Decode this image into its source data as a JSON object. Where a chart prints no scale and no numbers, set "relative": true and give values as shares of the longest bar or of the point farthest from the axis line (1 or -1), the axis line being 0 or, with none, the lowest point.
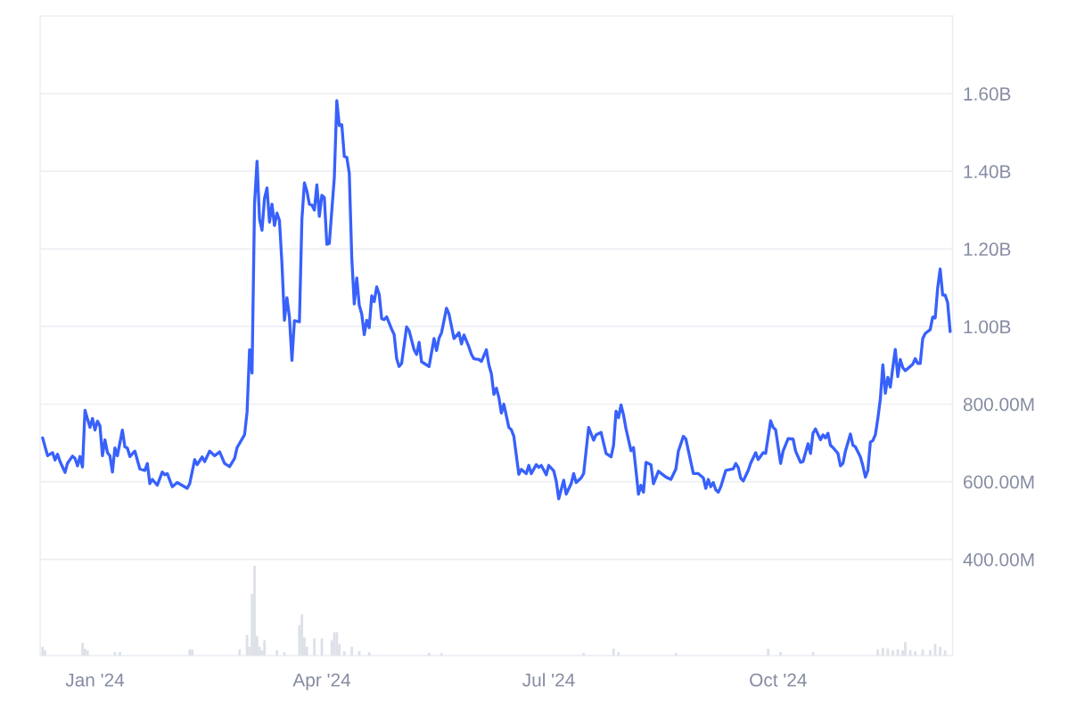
{
  "chart_data": [
    {
      "type": "line",
      "xlim": [
        "2023-12-10",
        "2024-12-10"
      ],
      "ylim": [
        152000000.0,
        1800000000.0
      ],
      "xticks": [
        {
          "value": "2024-01-01",
          "label": "Jan '24"
        },
        {
          "value": "2024-04-01",
          "label": "Apr '24"
        },
        {
          "value": "2024-07-01",
          "label": "Jul '24"
        },
        {
          "value": "2024-10-01",
          "label": "Oct '24"
        }
      ],
      "yticks": [
        {
          "value": 400000000.0,
          "label": "400.00M"
        },
        {
          "value": 600000000.0,
          "label": "600.00M"
        },
        {
          "value": 800000000.0,
          "label": "800.00M"
        },
        {
          "value": 1000000000.0,
          "label": "1.00B"
        },
        {
          "value": 1200000000.0,
          "label": "1.20B"
        },
        {
          "value": 1400000000.0,
          "label": "1.40B"
        },
        {
          "value": 1600000000.0,
          "label": "1.60B"
        }
      ],
      "grid": "y",
      "x": [
        "2023-12-11",
        "2023-12-13",
        "2023-12-15",
        "2023-12-16",
        "2023-12-17",
        "2023-12-18",
        "2023-12-20",
        "2023-12-21",
        "2023-12-23",
        "2023-12-24",
        "2023-12-25",
        "2023-12-26",
        "2023-12-27",
        "2023-12-28",
        "2023-12-30",
        "2023-12-31",
        "2024-01-01",
        "2024-01-02",
        "2024-01-03",
        "2024-01-04",
        "2024-01-05",
        "2024-01-06",
        "2024-01-07",
        "2024-01-08",
        "2024-01-09",
        "2024-01-10",
        "2024-01-12",
        "2024-01-13",
        "2024-01-14",
        "2024-01-15",
        "2024-01-17",
        "2024-01-19",
        "2024-01-21",
        "2024-01-22",
        "2024-01-23",
        "2024-01-24",
        "2024-01-26",
        "2024-01-28",
        "2024-01-29",
        "2024-01-30",
        "2024-02-01",
        "2024-02-03",
        "2024-02-07",
        "2024-02-08",
        "2024-02-10",
        "2024-02-11",
        "2024-02-13",
        "2024-02-14",
        "2024-02-16",
        "2024-02-18",
        "2024-02-20",
        "2024-02-22",
        "2024-02-24",
        "2024-02-26",
        "2024-02-27",
        "2024-03-01",
        "2024-03-02",
        "2024-03-03",
        "2024-03-04",
        "2024-03-05",
        "2024-03-06",
        "2024-03-07",
        "2024-03-08",
        "2024-03-09",
        "2024-03-10",
        "2024-03-11",
        "2024-03-12",
        "2024-03-13",
        "2024-03-14",
        "2024-03-15",
        "2024-03-16",
        "2024-03-17",
        "2024-03-18",
        "2024-03-19",
        "2024-03-20",
        "2024-03-21",
        "2024-03-23",
        "2024-03-24",
        "2024-03-25",
        "2024-03-26",
        "2024-03-27",
        "2024-03-28",
        "2024-03-29",
        "2024-03-30",
        "2024-03-31",
        "2024-04-01",
        "2024-04-02",
        "2024-04-03",
        "2024-04-04",
        "2024-04-06",
        "2024-04-07",
        "2024-04-08",
        "2024-04-09",
        "2024-04-10",
        "2024-04-11",
        "2024-04-12",
        "2024-04-13",
        "2024-04-14",
        "2024-04-15",
        "2024-04-16",
        "2024-04-17",
        "2024-04-18",
        "2024-04-19",
        "2024-04-20",
        "2024-04-21",
        "2024-04-22",
        "2024-04-23",
        "2024-04-24",
        "2024-04-25",
        "2024-04-26",
        "2024-04-27",
        "2024-04-29",
        "2024-04-30",
        "2024-05-01",
        "2024-05-02",
        "2024-05-03",
        "2024-05-05",
        "2024-05-06",
        "2024-05-08",
        "2024-05-09",
        "2024-05-10",
        "2024-05-11",
        "2024-05-14",
        "2024-05-16",
        "2024-05-17",
        "2024-05-18",
        "2024-05-19",
        "2024-05-21",
        "2024-05-22",
        "2024-05-24",
        "2024-05-26",
        "2024-05-27",
        "2024-05-28",
        "2024-05-30",
        "2024-05-31",
        "2024-06-01",
        "2024-06-03",
        "2024-06-04",
        "2024-06-06",
        "2024-06-07",
        "2024-06-08",
        "2024-06-09",
        "2024-06-10",
        "2024-06-11",
        "2024-06-12",
        "2024-06-13",
        "2024-06-15",
        "2024-06-16",
        "2024-06-17",
        "2024-06-19",
        "2024-06-20",
        "2024-06-22",
        "2024-06-23",
        "2024-06-24",
        "2024-06-26",
        "2024-06-27",
        "2024-06-28",
        "2024-06-30",
        "2024-07-01",
        "2024-07-03",
        "2024-07-04",
        "2024-07-05",
        "2024-07-07",
        "2024-07-08",
        "2024-07-10",
        "2024-07-11",
        "2024-07-12",
        "2024-07-14",
        "2024-07-15",
        "2024-07-17",
        "2024-07-19",
        "2024-07-20",
        "2024-07-22",
        "2024-07-24",
        "2024-07-26",
        "2024-07-27",
        "2024-07-28",
        "2024-07-29",
        "2024-07-30",
        "2024-07-31",
        "2024-08-01",
        "2024-08-03",
        "2024-08-04",
        "2024-08-06",
        "2024-08-07",
        "2024-08-08",
        "2024-08-09",
        "2024-08-11",
        "2024-08-12",
        "2024-08-14",
        "2024-08-17",
        "2024-08-19",
        "2024-08-21",
        "2024-08-22",
        "2024-08-24",
        "2024-08-25",
        "2024-08-28",
        "2024-08-30",
        "2024-09-01",
        "2024-09-02",
        "2024-09-03",
        "2024-09-04",
        "2024-09-05",
        "2024-09-06",
        "2024-09-07",
        "2024-09-08",
        "2024-09-10",
        "2024-09-13",
        "2024-09-14",
        "2024-09-15",
        "2024-09-16",
        "2024-09-17",
        "2024-09-19",
        "2024-09-20",
        "2024-09-22",
        "2024-09-23",
        "2024-09-25",
        "2024-09-26",
        "2024-09-28",
        "2024-09-29",
        "2024-09-30",
        "2024-10-02",
        "2024-10-03",
        "2024-10-05",
        "2024-10-07",
        "2024-10-08",
        "2024-10-10",
        "2024-10-11",
        "2024-10-13",
        "2024-10-14",
        "2024-10-15",
        "2024-10-16",
        "2024-10-18",
        "2024-10-19",
        "2024-10-20",
        "2024-10-21",
        "2024-10-22",
        "2024-10-23",
        "2024-10-25",
        "2024-10-26",
        "2024-10-27",
        "2024-10-28",
        "2024-10-30",
        "2024-10-31",
        "2024-11-01",
        "2024-11-03",
        "2024-11-04",
        "2024-11-05",
        "2024-11-06",
        "2024-11-07",
        "2024-11-08",
        "2024-11-09",
        "2024-11-10",
        "2024-11-11",
        "2024-11-12",
        "2024-11-13",
        "2024-11-14",
        "2024-11-15",
        "2024-11-16",
        "2024-11-17",
        "2024-11-18",
        "2024-11-19",
        "2024-11-20",
        "2024-11-21",
        "2024-11-24",
        "2024-11-25",
        "2024-11-26",
        "2024-11-27",
        "2024-11-28",
        "2024-11-29",
        "2024-12-01",
        "2024-12-02",
        "2024-12-03",
        "2024-12-04",
        "2024-12-05",
        "2024-12-06",
        "2024-12-07",
        "2024-12-08",
        "2024-12-09"
      ],
      "series": [
        {
          "color": "#3861fb",
          "values": [
            713000000.0,
            667000000.0,
            675000000.0,
            656000000.0,
            671000000.0,
            652000000.0,
            624000000.0,
            648000000.0,
            666000000.0,
            660000000.0,
            641000000.0,
            665000000.0,
            638000000.0,
            784000000.0,
            740000000.0,
            763000000.0,
            733000000.0,
            756000000.0,
            744000000.0,
            667000000.0,
            708000000.0,
            675000000.0,
            667000000.0,
            625000000.0,
            687000000.0,
            667000000.0,
            733000000.0,
            690000000.0,
            687000000.0,
            665000000.0,
            679000000.0,
            633000000.0,
            629000000.0,
            647000000.0,
            595000000.0,
            606000000.0,
            591000000.0,
            625000000.0,
            618000000.0,
            621000000.0,
            587000000.0,
            598000000.0,
            583000000.0,
            595000000.0,
            657000000.0,
            644000000.0,
            664000000.0,
            652000000.0,
            679000000.0,
            667000000.0,
            677000000.0,
            647000000.0,
            639000000.0,
            660000000.0,
            688000000.0,
            721000000.0,
            779000000.0,
            940000000.0,
            880000000.0,
            1315000000.0,
            1426000000.0,
            1277000000.0,
            1248000000.0,
            1330000000.0,
            1357000000.0,
            1269000000.0,
            1315000000.0,
            1260000000.0,
            1292000000.0,
            1273000000.0,
            1162000000.0,
            1016000000.0,
            1074000000.0,
            1024000000.0,
            913000000.0,
            1015000000.0,
            1012000000.0,
            1277000000.0,
            1370000000.0,
            1349000000.0,
            1315000000.0,
            1313000000.0,
            1300000000.0,
            1365000000.0,
            1284000000.0,
            1338000000.0,
            1332000000.0,
            1212000000.0,
            1214000000.0,
            1384000000.0,
            1582000000.0,
            1518000000.0,
            1520000000.0,
            1438000000.0,
            1436000000.0,
            1395000000.0,
            1177000000.0,
            1058000000.0,
            1125000000.0,
            1055000000.0,
            1032000000.0,
            979000000.0,
            1016000000.0,
            997000000.0,
            1079000000.0,
            1064000000.0,
            1102000000.0,
            1083000000.0,
            1020000000.0,
            1018000000.0,
            1025000000.0,
            993000000.0,
            979000000.0,
            917000000.0,
            897000000.0,
            905000000.0,
            999000000.0,
            989000000.0,
            940000000.0,
            928000000.0,
            959000000.0,
            909000000.0,
            897000000.0,
            969000000.0,
            938000000.0,
            970000000.0,
            984000000.0,
            1047000000.0,
            1032000000.0,
            969000000.0,
            984000000.0,
            955000000.0,
            978000000.0,
            947000000.0,
            928000000.0,
            917000000.0,
            915000000.0,
            910000000.0,
            940000000.0,
            901000000.0,
            878000000.0,
            825000000.0,
            841000000.0,
            817000000.0,
            777000000.0,
            800000000.0,
            740000000.0,
            734000000.0,
            717000000.0,
            619000000.0,
            632000000.0,
            621000000.0,
            642000000.0,
            621000000.0,
            644000000.0,
            637000000.0,
            642000000.0,
            618000000.0,
            642000000.0,
            628000000.0,
            602000000.0,
            556000000.0,
            604000000.0,
            568000000.0,
            595000000.0,
            621000000.0,
            598000000.0,
            610000000.0,
            621000000.0,
            740000000.0,
            707000000.0,
            721000000.0,
            727000000.0,
            673000000.0,
            664000000.0,
            694000000.0,
            782000000.0,
            765000000.0,
            798000000.0,
            772000000.0,
            736000000.0,
            680000000.0,
            688000000.0,
            568000000.0,
            591000000.0,
            573000000.0,
            650000000.0,
            644000000.0,
            595000000.0,
            627000000.0,
            612000000.0,
            606000000.0,
            633000000.0,
            679000000.0,
            717000000.0,
            710000000.0,
            621000000.0,
            621000000.0,
            610000000.0,
            583000000.0,
            606000000.0,
            587000000.0,
            598000000.0,
            579000000.0,
            573000000.0,
            587000000.0,
            629000000.0,
            633000000.0,
            647000000.0,
            637000000.0,
            609000000.0,
            602000000.0,
            629000000.0,
            648000000.0,
            675000000.0,
            657000000.0,
            675000000.0,
            673000000.0,
            757000000.0,
            740000000.0,
            734000000.0,
            647000000.0,
            679000000.0,
            711000000.0,
            710000000.0,
            679000000.0,
            650000000.0,
            652000000.0,
            698000000.0,
            673000000.0,
            725000000.0,
            736000000.0,
            708000000.0,
            721000000.0,
            713000000.0,
            725000000.0,
            694000000.0,
            688000000.0,
            673000000.0,
            641000000.0,
            647000000.0,
            679000000.0,
            723000000.0,
            694000000.0,
            690000000.0,
            664000000.0,
            641000000.0,
            612000000.0,
            629000000.0,
            702000000.0,
            706000000.0,
            721000000.0,
            763000000.0,
            813000000.0,
            901000000.0,
            828000000.0,
            869000000.0,
            844000000.0,
            894000000.0,
            941000000.0,
            871000000.0,
            915000000.0,
            894000000.0,
            886000000.0,
            903000000.0,
            917000000.0,
            905000000.0,
            905000000.0,
            969000000.0,
            982000000.0,
            992000000.0,
            1024000000.0,
            1022000000.0,
            1100000000.0,
            1148000000.0,
            1081000000.0,
            1081000000.0,
            1061000000.0,
            987000000.0
          ]
        }
      ]
    },
    {
      "type": "bar",
      "relative": true,
      "xlim": [
        "2023-12-10",
        "2024-12-10"
      ],
      "x": [
        "2023-12-11",
        "2023-12-12",
        "2023-12-27",
        "2023-12-28",
        "2023-12-29",
        "2024-01-09",
        "2024-01-11",
        "2024-02-08",
        "2024-02-09",
        "2024-02-28",
        "2024-03-02",
        "2024-03-03",
        "2024-03-04",
        "2024-03-05",
        "2024-03-06",
        "2024-03-07",
        "2024-03-08",
        "2024-03-09",
        "2024-03-14",
        "2024-03-17",
        "2024-03-23",
        "2024-03-24",
        "2024-03-25",
        "2024-03-26",
        "2024-03-29",
        "2024-04-01",
        "2024-04-05",
        "2024-04-06",
        "2024-04-07",
        "2024-04-08",
        "2024-04-10",
        "2024-04-13",
        "2024-04-16",
        "2024-04-20",
        "2024-05-14",
        "2024-05-19",
        "2024-07-15",
        "2024-07-27",
        "2024-07-29",
        "2024-08-21",
        "2024-09-27",
        "2024-10-02",
        "2024-10-15",
        "2024-11-10",
        "2024-11-12",
        "2024-11-14",
        "2024-11-16",
        "2024-11-18",
        "2024-11-20",
        "2024-11-21",
        "2024-11-23",
        "2024-11-25",
        "2024-11-28",
        "2024-12-01",
        "2024-12-03",
        "2024-12-05",
        "2024-12-07"
      ],
      "series": [
        {
          "color": "#dde1e7",
          "values": [
            0.1,
            0.06,
            0.14,
            0.08,
            0.06,
            0.04,
            0.04,
            0.07,
            0.07,
            0.07,
            0.23,
            0.1,
            0.69,
            1,
            0.22,
            0.1,
            0.06,
            0.17,
            0.06,
            0.04,
            0.34,
            0.46,
            0.2,
            0.1,
            0.19,
            0.19,
            0.17,
            0.26,
            0.26,
            0.13,
            0.05,
            0.1,
            0.05,
            0.04,
            0.03,
            0.03,
            0.03,
            0.08,
            0.04,
            0.03,
            0.08,
            0.04,
            0.04,
            0.07,
            0.09,
            0.08,
            0.06,
            0.07,
            0.06,
            0.15,
            0.06,
            0.05,
            0.07,
            0.06,
            0.13,
            0.1,
            0.06
          ]
        }
      ]
    }
  ]
}
